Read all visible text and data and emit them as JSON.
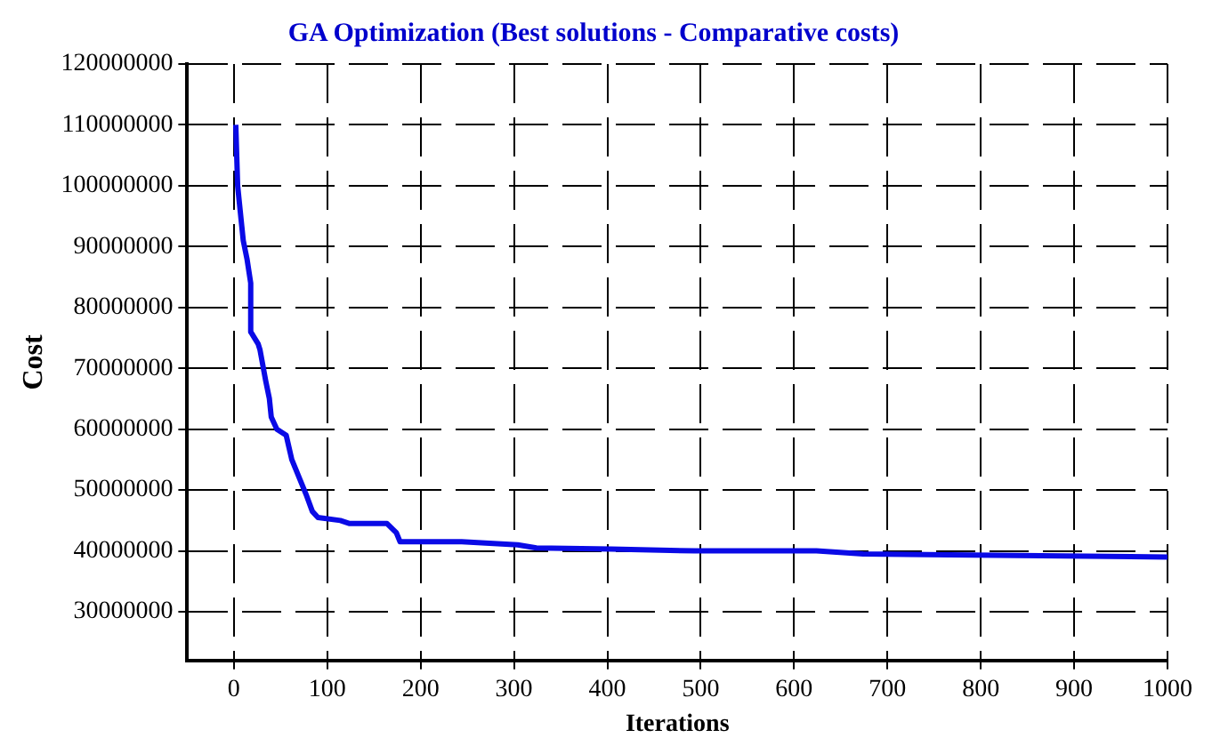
{
  "chart_data": {
    "type": "line",
    "title": "GA Optimization (Best solutions - Comparative costs)",
    "xlabel": "Iterations",
    "ylabel": "Cost",
    "series": [
      {
        "color": "#0a0ae6",
        "x": [
          2,
          4,
          6,
          10,
          14,
          18,
          18,
          26,
          28,
          34,
          38,
          40,
          46,
          56,
          62,
          70,
          78,
          84,
          90,
          114,
          124,
          164,
          174,
          178,
          244,
          304,
          324,
          404,
          494,
          624,
          674,
          1000
        ],
        "values": [
          110000000,
          100000000,
          97000000,
          91000000,
          88000000,
          84000000,
          76000000,
          74000000,
          73000000,
          68000000,
          65000000,
          62000000,
          60000000,
          59000000,
          55000000,
          52000000,
          49000000,
          46500000,
          45500000,
          45000000,
          44500000,
          44500000,
          43000000,
          41500000,
          41500000,
          41000000,
          40500000,
          40300000,
          40000000,
          40000000,
          39500000,
          39000000
        ]
      }
    ],
    "xlim": [
      -50,
      1000
    ],
    "xticks": [
      0,
      100,
      200,
      300,
      400,
      500,
      600,
      700,
      800,
      900,
      1000
    ],
    "ylim": [
      22000000,
      120000000
    ],
    "yticks": [
      30000000,
      40000000,
      50000000,
      60000000,
      70000000,
      80000000,
      90000000,
      100000000,
      110000000,
      120000000
    ],
    "grid": true,
    "legend": false,
    "marker": "none",
    "line_style": "solid"
  }
}
